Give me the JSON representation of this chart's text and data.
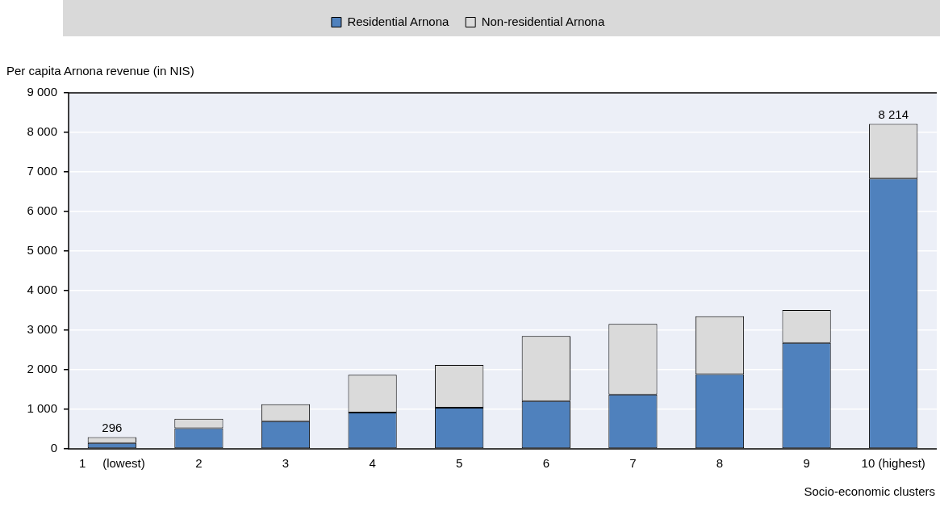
{
  "chart_data": {
    "type": "bar",
    "stacked": true,
    "ylabel": "Per capita Arnona revenue (in NIS)",
    "xlabel": "Socio-economic clusters",
    "categories": [
      "1     (lowest)",
      "2",
      "3",
      "4",
      "5",
      "6",
      "7",
      "8",
      "9",
      "10 (highest)"
    ],
    "series": [
      {
        "name": "Residential Arnona",
        "color": "#4f81bd",
        "values": [
          150,
          520,
          700,
          920,
          1040,
          1210,
          1370,
          1890,
          2680,
          6830
        ]
      },
      {
        "name": "Non-residential Arnona",
        "color": "#dadada",
        "values": [
          146,
          240,
          430,
          950,
          1080,
          1640,
          1790,
          1460,
          830,
          1384
        ]
      }
    ],
    "totals": [
      "296",
      null,
      null,
      null,
      null,
      null,
      null,
      null,
      null,
      "8 214"
    ],
    "ylim": [
      0,
      9000
    ],
    "yticks": [
      0,
      {
        "value": 1000,
        "label": "1 000"
      },
      {
        "value": 2000,
        "label": "2 000"
      },
      {
        "value": 3000,
        "label": "3 000"
      },
      {
        "value": 4000,
        "label": "4 000"
      },
      {
        "value": 5000,
        "label": "5 000"
      },
      {
        "value": 6000,
        "label": "6 000"
      },
      {
        "value": 7000,
        "label": "7 000"
      },
      {
        "value": 8000,
        "label": "8 000"
      },
      {
        "value": 9000,
        "label": "9 000"
      }
    ],
    "grid": "y",
    "legend": "top"
  }
}
